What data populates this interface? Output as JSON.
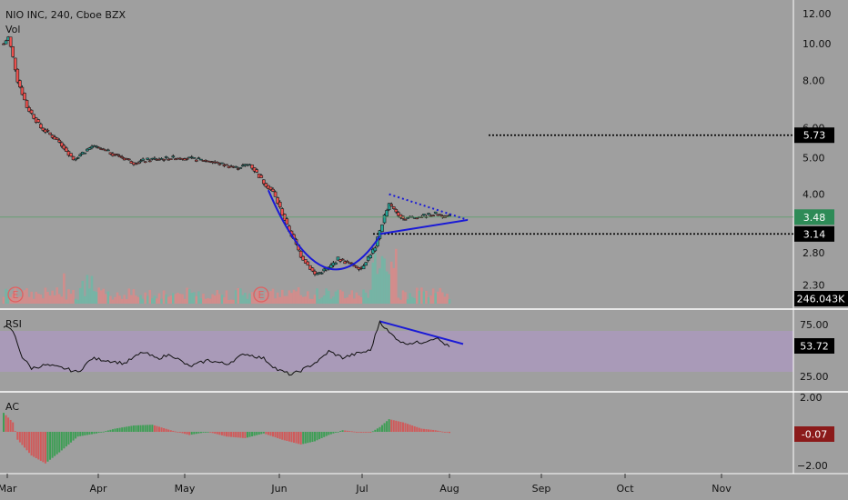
{
  "header": {
    "symbol_title": "NIO INC, 240, Cboe BZX",
    "volume_label": "Vol"
  },
  "panes": {
    "rsi": {
      "label": "RSI",
      "value_badge": "53.72",
      "ticks": [
        "75.00",
        "25.00"
      ]
    },
    "ac": {
      "label": "AC",
      "value_badge": "-0.07",
      "ticks": [
        "2.00",
        "−2.00"
      ]
    }
  },
  "colors": {
    "background": "#9f9f9f",
    "bull": "#26a69a",
    "bear": "#ef5350",
    "candle_line": "#1a1a1a",
    "trendline": "#1a1ad6",
    "rsi_band": "#a99ab8",
    "badge_last": "#2e8b57",
    "badge_dark": "#000000",
    "badge_ac": "#8b1a1a"
  },
  "chart_data": [
    {
      "type": "candlestick",
      "title": "NIO INC, 240, Cboe BZX",
      "y_scale": "log",
      "ylim": [
        2.1,
        12.7
      ],
      "y_ticks": [
        "12.00",
        "10.00",
        "8.00",
        "6.00",
        "5.00",
        "4.00",
        "2.80",
        "2.30"
      ],
      "x_ticks": [
        "Mar",
        "Apr",
        "May",
        "Jun",
        "Jul",
        "Aug",
        "Sep",
        "Oct",
        "Nov"
      ],
      "price_path": [
        [
          0,
          10.0
        ],
        [
          1,
          10.4
        ],
        [
          3,
          8.0
        ],
        [
          5,
          6.8
        ],
        [
          8,
          6.0
        ],
        [
          12,
          5.5
        ],
        [
          15,
          4.95
        ],
        [
          19,
          5.35
        ],
        [
          23,
          5.15
        ],
        [
          28,
          4.85
        ],
        [
          32,
          4.95
        ],
        [
          38,
          5.0
        ],
        [
          44,
          4.9
        ],
        [
          50,
          4.7
        ],
        [
          53,
          4.8
        ],
        [
          56,
          4.3
        ],
        [
          58,
          4.05
        ],
        [
          61,
          3.3
        ],
        [
          64,
          2.75
        ],
        [
          67,
          2.45
        ],
        [
          70,
          2.55
        ],
        [
          72,
          2.7
        ],
        [
          75,
          2.6
        ],
        [
          77,
          2.55
        ],
        [
          80,
          2.9
        ],
        [
          82,
          3.5
        ],
        [
          83,
          3.75
        ],
        [
          86,
          3.45
        ],
        [
          90,
          3.5
        ],
        [
          93,
          3.55
        ],
        [
          96,
          3.48
        ]
      ],
      "last_price": 3.48,
      "horizontal_levels": [
        5.73,
        3.14
      ],
      "price_badges": [
        "5.73",
        "3.48",
        "3.14"
      ],
      "volume_badge": "246.043K",
      "earnings_markers": [
        "E",
        "E"
      ]
    },
    {
      "type": "line",
      "series_name": "RSI",
      "ylim": [
        0,
        100
      ],
      "band": [
        30,
        70
      ],
      "last_value": 53.72,
      "path": [
        [
          0,
          80
        ],
        [
          2,
          74
        ],
        [
          4,
          42
        ],
        [
          6,
          28
        ],
        [
          9,
          32
        ],
        [
          13,
          28
        ],
        [
          16,
          23
        ],
        [
          19,
          40
        ],
        [
          22,
          38
        ],
        [
          26,
          34
        ],
        [
          30,
          48
        ],
        [
          33,
          40
        ],
        [
          36,
          45
        ],
        [
          40,
          30
        ],
        [
          44,
          38
        ],
        [
          48,
          33
        ],
        [
          52,
          46
        ],
        [
          56,
          40
        ],
        [
          59,
          26
        ],
        [
          62,
          20
        ],
        [
          65,
          28
        ],
        [
          68,
          38
        ],
        [
          70,
          49
        ],
        [
          73,
          41
        ],
        [
          76,
          46
        ],
        [
          79,
          50
        ],
        [
          81,
          86
        ],
        [
          83,
          72
        ],
        [
          86,
          59
        ],
        [
          90,
          60
        ],
        [
          93,
          66
        ],
        [
          96,
          54
        ]
      ]
    },
    {
      "type": "bar",
      "series_name": "AC",
      "ylim": [
        -2.3,
        2.3
      ],
      "last_value": -0.07,
      "path": [
        [
          0,
          1.2
        ],
        [
          2,
          0.6
        ],
        [
          3,
          -0.5
        ],
        [
          6,
          -1.5
        ],
        [
          9,
          -2.0
        ],
        [
          12,
          -1.3
        ],
        [
          16,
          -0.3
        ],
        [
          20,
          -0.1
        ],
        [
          24,
          0.2
        ],
        [
          28,
          0.4
        ],
        [
          32,
          0.45
        ],
        [
          36,
          0.1
        ],
        [
          40,
          -0.2
        ],
        [
          44,
          0.0
        ],
        [
          48,
          -0.3
        ],
        [
          52,
          -0.4
        ],
        [
          56,
          -0.1
        ],
        [
          60,
          -0.5
        ],
        [
          64,
          -0.8
        ],
        [
          67,
          -0.6
        ],
        [
          70,
          -0.2
        ],
        [
          73,
          0.1
        ],
        [
          76,
          0.0
        ],
        [
          79,
          -0.05
        ],
        [
          81,
          0.3
        ],
        [
          83,
          0.8
        ],
        [
          86,
          0.6
        ],
        [
          90,
          0.2
        ],
        [
          93,
          0.1
        ],
        [
          96,
          -0.07
        ]
      ]
    }
  ]
}
